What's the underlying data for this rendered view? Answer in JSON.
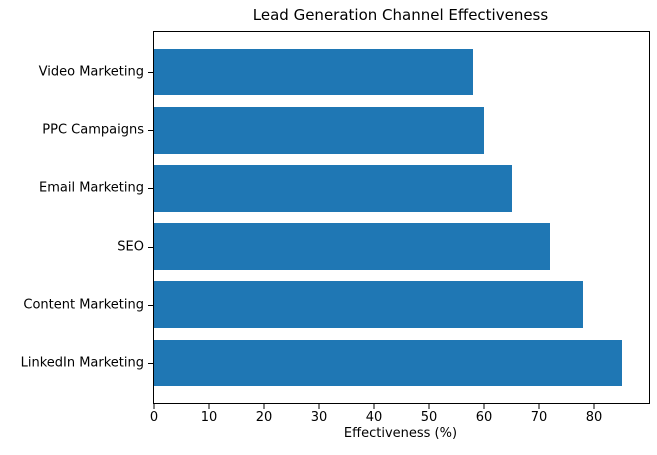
{
  "chart_data": {
    "type": "bar",
    "orientation": "horizontal",
    "title": "Lead Generation Channel Effectiveness",
    "xlabel": "Effectiveness (%)",
    "ylabel": "",
    "categories": [
      "Video Marketing",
      "PPC Campaigns",
      "Email Marketing",
      "SEO",
      "Content Marketing",
      "LinkedIn Marketing"
    ],
    "values": [
      58,
      60,
      65,
      72,
      78,
      85
    ],
    "xlim": [
      0,
      90
    ],
    "xticks": [
      0,
      10,
      20,
      30,
      40,
      50,
      60,
      70,
      80
    ],
    "grid": false,
    "legend": "none",
    "bar_color": "#1f77b4",
    "axis_color": "#000000",
    "text_color": "#000000",
    "background_color": "#ffffff"
  }
}
